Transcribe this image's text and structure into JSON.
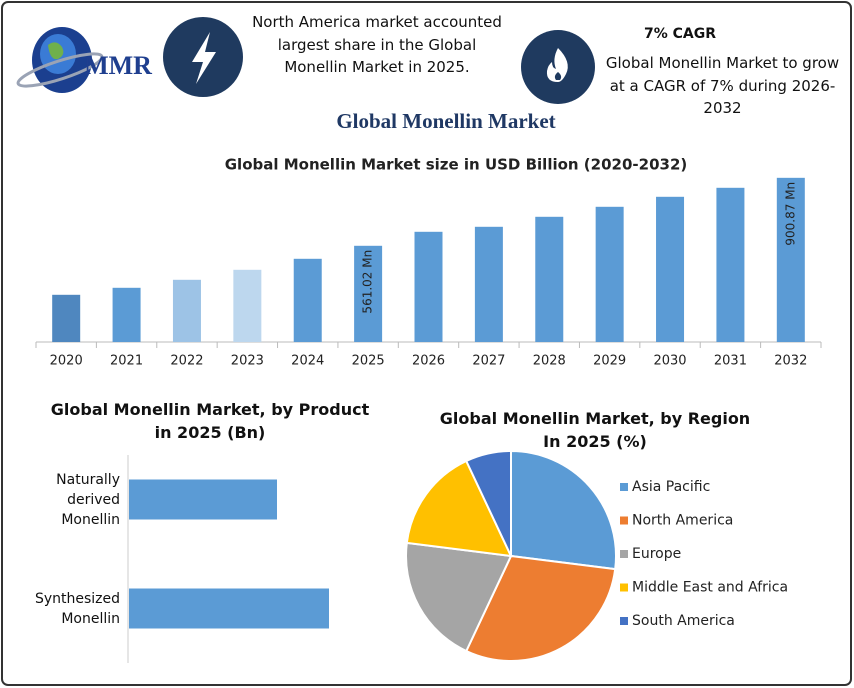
{
  "header": {
    "logo": "MMR",
    "info_left": "North America market accounted largest share in the Global Monellin Market in 2025.",
    "info_right_title": "7% CAGR",
    "info_right": "Global Monellin Market to grow at a CAGR of 7% during 2026-2032",
    "title": "Global Monellin Market"
  },
  "chart_data": [
    {
      "type": "bar",
      "title": "Global Monellin Market size in USD Billion (2020-2032)",
      "categories": [
        "2020",
        "2021",
        "2022",
        "2023",
        "2024",
        "2025",
        "2026",
        "2027",
        "2028",
        "2029",
        "2030",
        "2031",
        "2032"
      ],
      "values": [
        316,
        351,
        391,
        441,
        496,
        561.02,
        631,
        656,
        706,
        756,
        806,
        851,
        900.87
      ],
      "value_labels": [
        null,
        null,
        null,
        null,
        null,
        "561.02 Mn",
        null,
        null,
        null,
        null,
        null,
        null,
        "900.87 Mn"
      ],
      "colors": [
        "#4f87bf",
        "#5b9bd5",
        "#9dc3e6",
        "#bdd7ee",
        "#5b9bd5",
        "#5b9bd5",
        "#5b9bd5",
        "#5b9bd5",
        "#5b9bd5",
        "#5b9bd5",
        "#5b9bd5",
        "#5b9bd5",
        "#5b9bd5"
      ],
      "ylim": [
        80,
        950
      ]
    },
    {
      "type": "hbar",
      "title": "Global Monellin Market, by Product in 2025 (Bn)",
      "categories": [
        "Naturally derived Monellin",
        "Synthesized Monellin"
      ],
      "values": [
        0.37,
        0.5
      ],
      "color": "#5b9bd5",
      "xlim": [
        0,
        1
      ]
    },
    {
      "type": "pie",
      "title": "Global Monellin Market, by Region In 2025 (%)",
      "categories": [
        "Asia Pacific",
        "North America",
        "Europe",
        "Middle East and Africa",
        "South America"
      ],
      "values": [
        27,
        30,
        20,
        16,
        7
      ],
      "colors": [
        "#5b9bd5",
        "#ed7d31",
        "#a5a5a5",
        "#ffc000",
        "#4472c4"
      ],
      "legend": "right"
    }
  ]
}
